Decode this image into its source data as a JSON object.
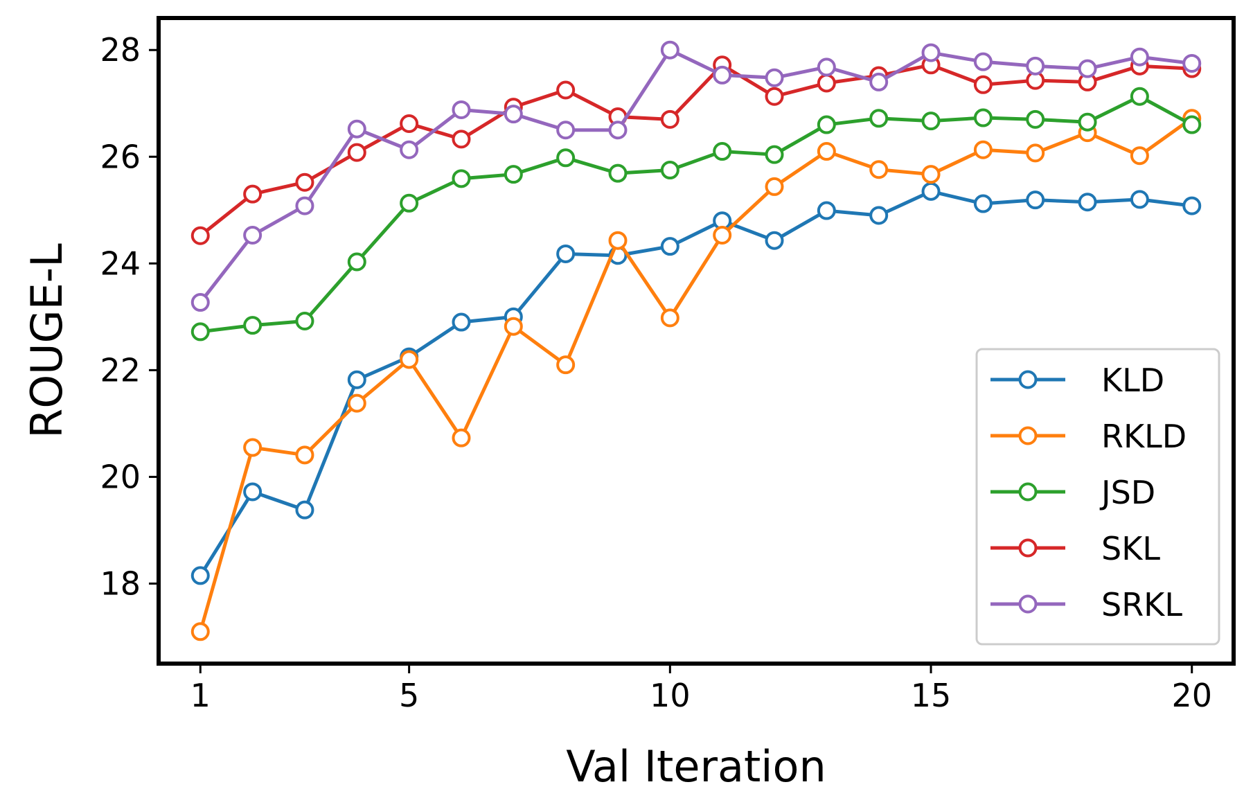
{
  "chart_data": {
    "type": "line",
    "title": "",
    "xlabel": "Val Iteration",
    "ylabel": "ROUGE-L",
    "xlim": [
      0.2,
      20.8
    ],
    "ylim": [
      16.5,
      28.6
    ],
    "xticks": [
      1,
      5,
      10,
      15,
      20
    ],
    "xtick_labels": [
      "1",
      "5",
      "10",
      "15",
      "20"
    ],
    "yticks": [
      18,
      20,
      22,
      24,
      26,
      28
    ],
    "ytick_labels": [
      "18",
      "20",
      "22",
      "24",
      "26",
      "28"
    ],
    "grid": false,
    "legend_position": "lower right",
    "x": [
      1,
      2,
      3,
      4,
      5,
      6,
      7,
      8,
      9,
      10,
      11,
      12,
      13,
      14,
      15,
      16,
      17,
      18,
      19,
      20
    ],
    "series": [
      {
        "name": "KLD",
        "color": "#1f77b4",
        "values": [
          18.15,
          19.72,
          19.38,
          21.82,
          22.25,
          22.9,
          23.0,
          24.18,
          24.15,
          24.32,
          24.8,
          24.43,
          24.99,
          24.9,
          25.35,
          25.12,
          25.19,
          25.15,
          25.2,
          25.08
        ]
      },
      {
        "name": "RKLD",
        "color": "#ff7f0e",
        "values": [
          17.1,
          20.55,
          20.41,
          21.38,
          22.2,
          20.73,
          22.82,
          22.1,
          24.43,
          22.98,
          24.53,
          25.44,
          26.1,
          25.76,
          25.67,
          26.13,
          26.07,
          26.45,
          26.02,
          26.72
        ]
      },
      {
        "name": "JSD",
        "color": "#2ca02c",
        "values": [
          22.72,
          22.84,
          22.92,
          24.03,
          25.13,
          25.59,
          25.67,
          25.98,
          25.69,
          25.75,
          26.1,
          26.04,
          26.6,
          26.72,
          26.67,
          26.73,
          26.7,
          26.65,
          27.13,
          26.6
        ]
      },
      {
        "name": "SKL",
        "color": "#d62728",
        "values": [
          24.52,
          25.3,
          25.52,
          26.08,
          26.62,
          26.33,
          26.93,
          27.25,
          26.75,
          26.7,
          27.72,
          27.13,
          27.38,
          27.52,
          27.72,
          27.35,
          27.43,
          27.4,
          27.7,
          27.65
        ]
      },
      {
        "name": "SRKL",
        "color": "#9467bd",
        "values": [
          23.27,
          24.53,
          25.08,
          26.52,
          26.13,
          26.88,
          26.8,
          26.5,
          26.5,
          28.0,
          27.53,
          27.48,
          27.68,
          27.4,
          27.95,
          27.78,
          27.7,
          27.65,
          27.87,
          27.75
        ]
      }
    ]
  }
}
